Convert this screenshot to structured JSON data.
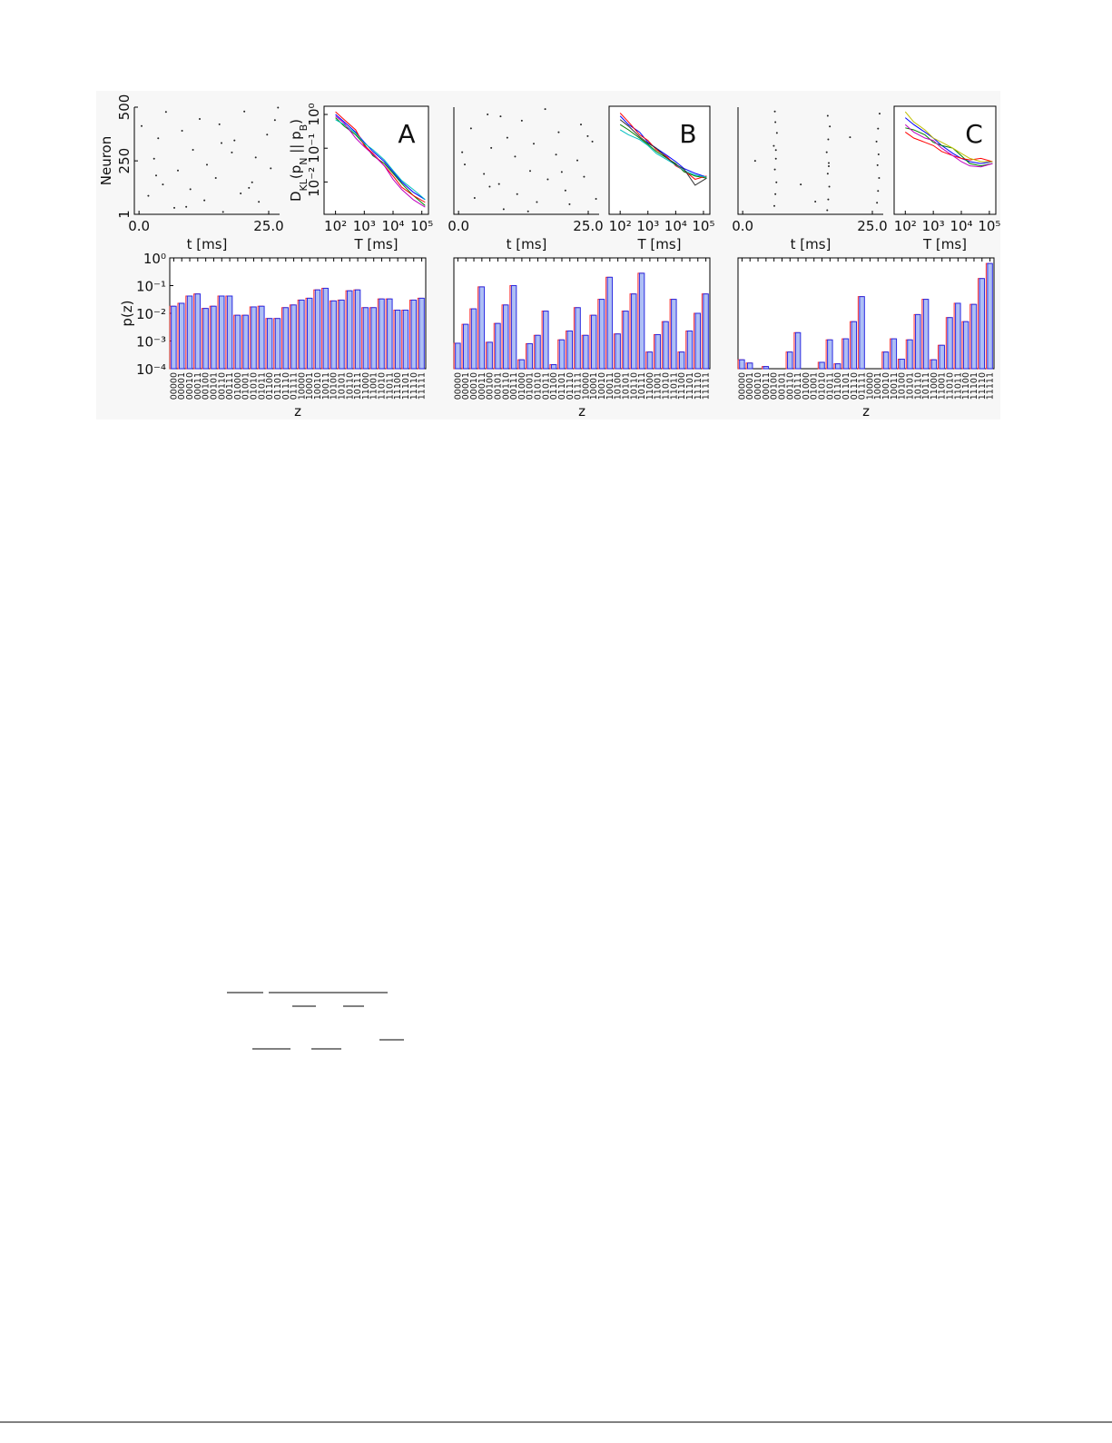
{
  "chart_data": [
    {
      "type": "scatter",
      "xlabel": "t [ms]",
      "ylabel": "Neuron",
      "xlim": [
        -0.9,
        27.1
      ],
      "ylim": [
        1,
        500
      ],
      "xticks": [
        {
          "value": 0,
          "label": "0.0"
        },
        {
          "value": 25,
          "label": "25.0"
        }
      ],
      "yticks": [
        1,
        250,
        500
      ],
      "color": "#222222",
      "x": [
        0.5,
        1.8,
        2.9,
        3.7,
        4.6,
        5.2,
        6.8,
        7.5,
        8.3,
        9.9,
        10.4,
        11.7,
        12.6,
        13.1,
        14.8,
        15.5,
        16.2,
        17.9,
        18.4,
        19.6,
        20.3,
        21.8,
        22.5,
        23.1,
        24.7,
        25.4,
        26.2,
        3.3,
        9.1,
        15.9,
        21.2,
        26.8
      ],
      "y": [
        412,
        87,
        260,
        355,
        140,
        478,
        31,
        205,
        390,
        118,
        301,
        445,
        66,
        232,
        170,
        420,
        12,
        289,
        345,
        98,
        480,
        150,
        266,
        59,
        372,
        215,
        440,
        182,
        36,
        333,
        124,
        498
      ]
    },
    {
      "type": "line",
      "xlabel": "T [ms]",
      "ylabel_parts": [
        "D",
        "KL",
        "(p",
        "N",
        " || p",
        "B",
        ")"
      ],
      "annotation": "A",
      "xlog": true,
      "ylog": true,
      "xlim": [
        40,
        170000
      ],
      "ylim": [
        0.0011,
        1.75
      ],
      "xticks": [
        {
          "value": 100,
          "label": "10²"
        },
        {
          "value": 1000,
          "label": "10³"
        },
        {
          "value": 10000,
          "label": "10⁴"
        },
        {
          "value": 100000,
          "label": "10⁵"
        }
      ],
      "yticks": [
        {
          "value": 0.01,
          "label": "10⁻²"
        },
        {
          "value": 0.1,
          "label": "10⁻¹"
        },
        {
          "value": 1,
          "label": "10⁰"
        }
      ],
      "x": [
        100,
        200,
        500,
        1000,
        2000,
        5000,
        10000,
        20000,
        50000,
        130000
      ],
      "series": [
        {
          "color": "#0000ff",
          "values": [
            1.0,
            0.6,
            0.3,
            0.15,
            0.08,
            0.04,
            0.02,
            0.01,
            0.005,
            0.003
          ]
        },
        {
          "color": "#008000",
          "values": [
            0.8,
            0.45,
            0.25,
            0.13,
            0.06,
            0.035,
            0.018,
            0.009,
            0.004,
            0.002
          ]
        },
        {
          "color": "#ff0000",
          "values": [
            1.2,
            0.7,
            0.35,
            0.12,
            0.07,
            0.03,
            0.015,
            0.007,
            0.004,
            0.0025
          ]
        },
        {
          "color": "#00bfbf",
          "values": [
            0.7,
            0.5,
            0.28,
            0.14,
            0.09,
            0.045,
            0.022,
            0.011,
            0.006,
            0.003
          ]
        },
        {
          "color": "#bf00bf",
          "values": [
            0.9,
            0.55,
            0.2,
            0.11,
            0.065,
            0.03,
            0.012,
            0.006,
            0.003,
            0.0018
          ]
        }
      ]
    },
    {
      "type": "bar",
      "xlabel": "z",
      "ylabel": "p(z)",
      "ylog": true,
      "ylim": [
        0.0001,
        1
      ],
      "color": "#aebff5",
      "edge_color": "#ff3030",
      "yticks": [
        {
          "value": 1,
          "label": "10⁰"
        },
        {
          "value": 0.1,
          "label": "10⁻¹"
        },
        {
          "value": 0.01,
          "label": "10⁻²"
        },
        {
          "value": 0.001,
          "label": "10⁻³"
        },
        {
          "value": 0.0001,
          "label": "10⁻⁴"
        }
      ],
      "categories": [
        "00000",
        "00001",
        "00010",
        "00011",
        "00100",
        "00101",
        "00110",
        "00111",
        "01000",
        "01001",
        "01010",
        "01011",
        "01100",
        "01101",
        "01110",
        "01111",
        "10000",
        "10001",
        "10010",
        "10011",
        "10100",
        "10101",
        "10110",
        "10111",
        "11000",
        "11001",
        "11010",
        "11011",
        "11100",
        "11101",
        "11110",
        "11111"
      ],
      "values": [
        0.018,
        0.023,
        0.042,
        0.05,
        0.015,
        0.018,
        0.042,
        0.042,
        0.0085,
        0.0085,
        0.017,
        0.018,
        0.0065,
        0.0065,
        0.016,
        0.02,
        0.03,
        0.035,
        0.07,
        0.08,
        0.028,
        0.03,
        0.065,
        0.07,
        0.016,
        0.016,
        0.033,
        0.033,
        0.013,
        0.013,
        0.03,
        0.035
      ]
    },
    {
      "type": "scatter",
      "xlabel": "t [ms]",
      "xlim": [
        -0.9,
        27.1
      ],
      "ylim": [
        1,
        500
      ],
      "xticks": [
        {
          "value": 0,
          "label": "0.0"
        },
        {
          "value": 25,
          "label": "25.0"
        }
      ],
      "color": "#222222",
      "x": [
        1.2,
        2.4,
        3.1,
        4.9,
        5.6,
        6.3,
        7.8,
        8.7,
        9.4,
        10.9,
        11.3,
        12.2,
        13.8,
        14.5,
        15.1,
        16.7,
        17.2,
        18.8,
        19.3,
        20.6,
        21.4,
        22.9,
        23.6,
        24.2,
        25.8,
        26.5,
        0.7,
        8.1,
        13.4,
        19.9,
        24.9,
        6.0
      ],
      "y": [
        233,
        401,
        77,
        189,
        466,
        310,
        142,
        25,
        358,
        270,
        95,
        437,
        203,
        330,
        58,
        491,
        164,
        279,
        383,
        112,
        48,
        252,
        419,
        176,
        340,
        73,
        290,
        457,
        15,
        198,
        365,
        130
      ]
    },
    {
      "type": "line",
      "xlabel": "T [ms]",
      "annotation": "B",
      "xlog": true,
      "ylog": true,
      "xlim": [
        40,
        170000
      ],
      "ylim": [
        0.0011,
        1.75
      ],
      "xticks": [
        {
          "value": 100,
          "label": "10²"
        },
        {
          "value": 1000,
          "label": "10³"
        },
        {
          "value": 10000,
          "label": "10⁴"
        },
        {
          "value": 100000,
          "label": "10⁵"
        }
      ],
      "x": [
        100,
        200,
        500,
        1000,
        2000,
        5000,
        10000,
        20000,
        50000,
        130000
      ],
      "series": [
        {
          "color": "#0000ff",
          "values": [
            0.9,
            0.5,
            0.3,
            0.15,
            0.1,
            0.06,
            0.04,
            0.025,
            0.018,
            0.014
          ]
        },
        {
          "color": "#008000",
          "values": [
            0.5,
            0.35,
            0.2,
            0.13,
            0.08,
            0.05,
            0.035,
            0.02,
            0.015,
            0.013
          ]
        },
        {
          "color": "#ff0000",
          "values": [
            1.1,
            0.6,
            0.25,
            0.17,
            0.09,
            0.055,
            0.03,
            0.022,
            0.012,
            0.015
          ]
        },
        {
          "color": "#00bfbf",
          "values": [
            0.35,
            0.25,
            0.18,
            0.12,
            0.07,
            0.045,
            0.032,
            0.022,
            0.016,
            0.014
          ]
        },
        {
          "color": "#333333",
          "values": [
            0.7,
            0.45,
            0.22,
            0.14,
            0.1,
            0.05,
            0.033,
            0.024,
            0.008,
            0.013
          ]
        }
      ]
    },
    {
      "type": "bar",
      "xlabel": "z",
      "ylog": true,
      "ylim": [
        0.0001,
        1
      ],
      "color": "#aebff5",
      "edge_color": "#ff3030",
      "categories": [
        "00000",
        "00001",
        "00010",
        "00011",
        "00100",
        "00101",
        "00110",
        "00111",
        "01000",
        "01001",
        "01010",
        "01011",
        "01100",
        "01101",
        "01110",
        "01111",
        "10000",
        "10001",
        "10010",
        "10011",
        "10100",
        "10101",
        "10110",
        "10111",
        "11000",
        "11001",
        "11010",
        "11011",
        "11100",
        "11101",
        "11110",
        "11111"
      ],
      "values": [
        0.00083,
        0.004,
        0.0145,
        0.09,
        0.0009,
        0.0043,
        0.02,
        0.1,
        0.00021,
        0.0008,
        0.0016,
        0.012,
        0.00014,
        0.0011,
        0.0023,
        0.016,
        0.0016,
        0.0085,
        0.032,
        0.2,
        0.0018,
        0.012,
        0.05,
        0.28,
        0.0004,
        0.0017,
        0.005,
        0.032,
        0.0004,
        0.0023,
        0.01,
        0.05
      ]
    },
    {
      "type": "scatter",
      "xlabel": "t [ms]",
      "xlim": [
        -0.9,
        27.1
      ],
      "ylim": [
        1,
        500
      ],
      "xticks": [
        {
          "value": 0,
          "label": "0.0"
        },
        {
          "value": 25,
          "label": "25.0"
        }
      ],
      "color": "#222222",
      "x": [
        6.1,
        6.3,
        6.5,
        6.2,
        6.4,
        6.0,
        6.6,
        6.3,
        6.2,
        6.4,
        16.3,
        16.5,
        16.7,
        16.4,
        16.6,
        16.2,
        16.5,
        16.8,
        16.4,
        16.6,
        25.9,
        26.1,
        26.3,
        26.0,
        26.2,
        25.8,
        26.1,
        26.4,
        2.4,
        11.2,
        20.7,
        14.0
      ],
      "y": [
        40,
        95,
        150,
        210,
        260,
        320,
        380,
        430,
        480,
        300,
        20,
        70,
        130,
        190,
        240,
        290,
        350,
        410,
        460,
        225,
        55,
        110,
        170,
        230,
        280,
        340,
        400,
        470,
        250,
        140,
        360,
        60
      ]
    },
    {
      "type": "line",
      "xlabel": "T [ms]",
      "annotation": "C",
      "xlog": true,
      "ylog": true,
      "xlim": [
        40,
        170000
      ],
      "ylim": [
        0.0011,
        1.75
      ],
      "xticks": [
        {
          "value": 100,
          "label": "10²"
        },
        {
          "value": 1000,
          "label": "10³"
        },
        {
          "value": 10000,
          "label": "10⁴"
        },
        {
          "value": 100000,
          "label": "10⁵"
        }
      ],
      "x": [
        100,
        200,
        500,
        1000,
        2000,
        5000,
        10000,
        20000,
        50000,
        130000
      ],
      "series": [
        {
          "color": "#0000ff",
          "values": [
            0.8,
            0.5,
            0.3,
            0.2,
            0.12,
            0.07,
            0.05,
            0.04,
            0.035,
            0.04
          ]
        },
        {
          "color": "#008000",
          "values": [
            0.4,
            0.35,
            0.25,
            0.15,
            0.12,
            0.1,
            0.06,
            0.035,
            0.03,
            0.035
          ]
        },
        {
          "color": "#ff0000",
          "values": [
            0.3,
            0.2,
            0.15,
            0.12,
            0.08,
            0.06,
            0.05,
            0.045,
            0.05,
            0.04
          ]
        },
        {
          "color": "#bfbf00",
          "values": [
            1.2,
            0.6,
            0.35,
            0.2,
            0.15,
            0.1,
            0.07,
            0.05,
            0.04,
            0.04
          ]
        },
        {
          "color": "#bf00bf",
          "values": [
            0.5,
            0.3,
            0.2,
            0.17,
            0.1,
            0.06,
            0.04,
            0.03,
            0.028,
            0.035
          ]
        }
      ]
    },
    {
      "type": "bar",
      "xlabel": "z",
      "ylog": true,
      "ylim": [
        0.0001,
        1
      ],
      "color": "#aebff5",
      "edge_color": "#ff3030",
      "categories": [
        "00000",
        "00001",
        "00010",
        "00011",
        "00100",
        "00101",
        "00110",
        "00111",
        "01000",
        "01001",
        "01010",
        "01011",
        "01100",
        "01101",
        "01110",
        "01111",
        "10000",
        "10001",
        "10010",
        "10011",
        "10100",
        "10101",
        "10110",
        "10111",
        "11000",
        "11001",
        "11010",
        "11011",
        "11100",
        "11101",
        "11110",
        "11111"
      ],
      "values": [
        0.00021,
        0.00016,
        9e-05,
        0.00012,
        9e-05,
        0.0001,
        0.0004,
        0.002,
        9e-05,
        0.0001,
        0.00017,
        0.0011,
        0.00015,
        0.0012,
        0.005,
        0.04,
        9e-05,
        0.0001,
        0.0004,
        0.0012,
        0.00022,
        0.0011,
        0.009,
        0.032,
        0.00021,
        0.0007,
        0.007,
        0.023,
        0.005,
        0.021,
        0.18,
        0.63
      ]
    }
  ]
}
